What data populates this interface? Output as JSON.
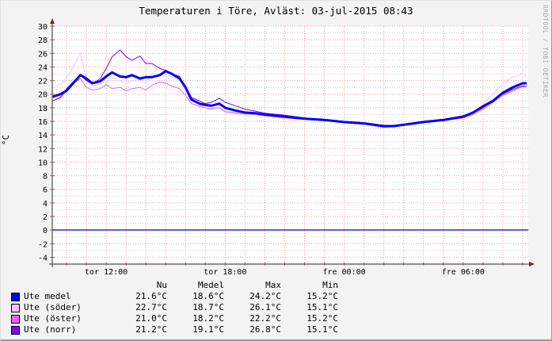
{
  "title": "Temperaturen i Töre, Avläst: 03-jul-2015 08:43",
  "watermark": "RRDTOOL / TOBI OETIKER",
  "y_axis_label": "°C",
  "legend": {
    "headers": [
      "Nu",
      "Medel",
      "Max",
      "Min"
    ],
    "rows": [
      {
        "name": "Ute medel",
        "color": "#0000FF",
        "nu": "21.6°C",
        "medel": "18.6°C",
        "max": "24.2°C",
        "min": "15.2°C"
      },
      {
        "name": "Ute (söder)",
        "color": "#FFC0FF",
        "nu": "22.7°C",
        "medel": "18.7°C",
        "max": "26.1°C",
        "min": "15.1°C"
      },
      {
        "name": "Ute (öster)",
        "color": "#E066FF",
        "nu": "21.0°C",
        "medel": "18.2°C",
        "max": "22.2°C",
        "min": "15.2°C"
      },
      {
        "name": "Ute (norr)",
        "color": "#8000FF",
        "nu": "21.2°C",
        "medel": "19.1°C",
        "max": "26.8°C",
        "min": "15.1°C"
      }
    ]
  },
  "chart_data": {
    "type": "line",
    "title": "Temperaturen i Töre, Avläst: 03-jul-2015 08:43",
    "xlabel": "",
    "ylabel": "°C",
    "ylim": [
      -5,
      30
    ],
    "yticks": [
      30,
      28,
      26,
      24,
      22,
      20,
      18,
      16,
      14,
      12,
      10,
      8,
      6,
      4,
      2,
      0,
      -2,
      -4
    ],
    "xticks": [
      {
        "label": "tor 12:00",
        "hour": 12
      },
      {
        "label": "tor 18:00",
        "hour": 18
      },
      {
        "label": "fre 00:00",
        "hour": 24
      },
      {
        "label": "fre 06:00",
        "hour": 30
      }
    ],
    "x_range_hours": [
      9.28,
      33.28
    ],
    "grid": true,
    "legend_position": "bottom",
    "x_hours": [
      9.3,
      9.7,
      10.0,
      10.3,
      10.7,
      11.0,
      11.3,
      11.7,
      12.0,
      12.3,
      12.7,
      13.0,
      13.3,
      13.7,
      14.0,
      14.3,
      14.7,
      15.0,
      15.3,
      15.7,
      16.0,
      16.3,
      16.7,
      17.0,
      17.3,
      17.7,
      18.0,
      18.5,
      19.0,
      19.5,
      20.0,
      21.0,
      22.0,
      23.0,
      24.0,
      25.0,
      26.0,
      26.5,
      27.0,
      27.5,
      28.0,
      29.0,
      30.0,
      30.5,
      31.0,
      31.5,
      32.0,
      32.5,
      33.0,
      33.2
    ],
    "series": [
      {
        "name": "Ute medel",
        "color": "#0000FF",
        "width": 3,
        "values": [
          19.6,
          20.0,
          20.5,
          21.5,
          22.8,
          22.3,
          21.6,
          21.9,
          22.6,
          23.2,
          22.6,
          22.5,
          22.8,
          22.3,
          22.5,
          22.5,
          22.8,
          23.4,
          23.0,
          22.3,
          21.0,
          19.2,
          18.6,
          18.4,
          18.3,
          18.6,
          18.0,
          17.6,
          17.3,
          17.2,
          17.0,
          16.7,
          16.4,
          16.2,
          15.9,
          15.7,
          15.3,
          15.3,
          15.5,
          15.7,
          15.9,
          16.2,
          16.7,
          17.3,
          18.2,
          19.0,
          20.2,
          21.0,
          21.6,
          21.6
        ]
      },
      {
        "name": "Ute (söder)",
        "color": "#FFC0FF",
        "width": 1,
        "values": [
          21.0,
          21.4,
          22.4,
          23.8,
          26.0,
          22.0,
          21.2,
          21.5,
          21.8,
          22.4,
          22.0,
          21.5,
          22.0,
          22.2,
          21.6,
          23.0,
          24.0,
          22.8,
          22.5,
          22.3,
          20.4,
          18.6,
          18.3,
          18.0,
          17.9,
          18.1,
          17.5,
          17.3,
          17.1,
          17.1,
          16.9,
          16.6,
          16.4,
          16.2,
          15.8,
          15.6,
          15.2,
          15.2,
          15.5,
          15.7,
          15.9,
          16.2,
          16.5,
          17.2,
          18.5,
          20.0,
          21.6,
          22.5,
          23.0,
          22.7
        ]
      },
      {
        "name": "Ute (öster)",
        "color": "#E066FF",
        "width": 1,
        "values": [
          19.0,
          19.6,
          20.5,
          21.5,
          22.3,
          21.0,
          20.6,
          20.8,
          21.4,
          20.8,
          21.0,
          20.5,
          20.8,
          21.0,
          20.6,
          21.3,
          21.8,
          21.6,
          21.2,
          20.8,
          19.8,
          18.6,
          18.2,
          18.0,
          17.8,
          18.0,
          17.4,
          17.2,
          17.1,
          17.0,
          16.8,
          16.5,
          16.3,
          16.1,
          15.8,
          15.6,
          15.1,
          15.2,
          15.5,
          15.7,
          15.9,
          16.1,
          16.5,
          17.0,
          17.8,
          18.8,
          19.8,
          20.5,
          21.1,
          21.0
        ]
      },
      {
        "name": "Ute (norr)",
        "color": "#8000FF",
        "width": 1,
        "values": [
          19.0,
          19.5,
          20.8,
          21.7,
          22.8,
          22.0,
          21.5,
          22.3,
          23.8,
          25.5,
          26.5,
          25.5,
          25.0,
          25.6,
          24.5,
          24.5,
          23.8,
          23.5,
          23.0,
          22.6,
          21.0,
          19.5,
          19.0,
          18.6,
          18.8,
          19.4,
          18.8,
          18.3,
          17.8,
          17.5,
          17.2,
          16.9,
          16.5,
          16.2,
          15.9,
          15.7,
          15.3,
          15.3,
          15.5,
          15.8,
          16.0,
          16.3,
          16.7,
          17.2,
          18.0,
          19.0,
          20.0,
          20.7,
          21.2,
          21.2
        ]
      }
    ]
  }
}
